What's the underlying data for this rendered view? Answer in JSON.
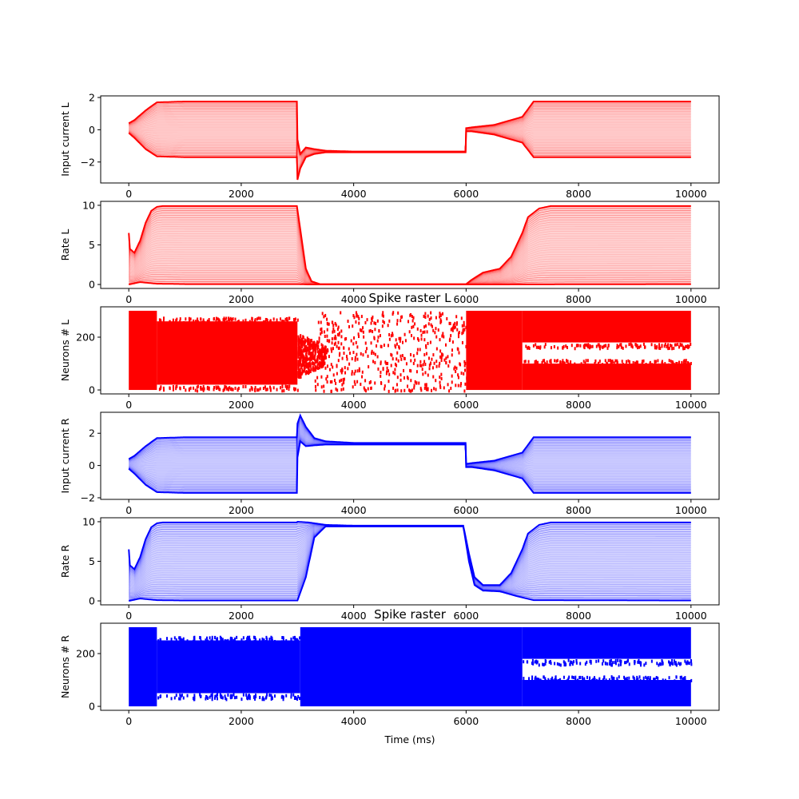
{
  "figure": {
    "xlabel": "Time (ms)"
  },
  "chart_data": [
    {
      "type": "line",
      "panel": "input_current_L",
      "title": "",
      "ylabel": "Input current L",
      "xlim": [
        -500,
        10500
      ],
      "ylim": [
        -3.3,
        2.1
      ],
      "xticks": [
        0,
        2000,
        4000,
        6000,
        8000,
        10000
      ],
      "yticks": [
        -2,
        0,
        2
      ],
      "color": "#ff0000",
      "series": [
        {
          "role": "upper",
          "x": [
            0,
            100,
            300,
            500,
            1000,
            2000,
            2990,
            3000,
            3050,
            3150,
            3300,
            3500,
            4000,
            5000,
            5990,
            6000,
            6100,
            6500,
            7000,
            7200,
            8000,
            10000
          ],
          "y": [
            0.4,
            0.6,
            1.2,
            1.7,
            1.75,
            1.75,
            1.75,
            -0.6,
            -1.5,
            -1.1,
            -1.2,
            -1.3,
            -1.35,
            -1.35,
            -1.35,
            0.1,
            0.15,
            0.3,
            0.8,
            1.75,
            1.75,
            1.75
          ]
        },
        {
          "role": "lower",
          "x": [
            0,
            100,
            300,
            500,
            1000,
            2000,
            2990,
            3000,
            3050,
            3150,
            3300,
            3500,
            4000,
            5000,
            5990,
            6000,
            6100,
            6500,
            7000,
            7200,
            8000,
            10000
          ],
          "y": [
            -0.2,
            -0.5,
            -1.2,
            -1.65,
            -1.7,
            -1.7,
            -1.7,
            -3.1,
            -2.4,
            -1.7,
            -1.5,
            -1.4,
            -1.4,
            -1.4,
            -1.4,
            -0.1,
            -0.1,
            -0.3,
            -0.8,
            -1.7,
            -1.7,
            -1.7
          ]
        }
      ]
    },
    {
      "type": "line",
      "panel": "rate_L",
      "title": "",
      "ylabel": "Rate L",
      "xlim": [
        -500,
        10500
      ],
      "ylim": [
        -0.5,
        10.5
      ],
      "xticks": [
        0,
        2000,
        4000,
        6000,
        8000,
        10000
      ],
      "yticks": [
        0,
        5,
        10
      ],
      "color": "#ff0000",
      "series": [
        {
          "role": "upper",
          "x": [
            0,
            20,
            100,
            200,
            300,
            400,
            500,
            600,
            800,
            2900,
            2990,
            3050,
            3150,
            3250,
            3400,
            6000,
            6100,
            6300,
            6600,
            6800,
            7000,
            7100,
            7300,
            7500,
            10000
          ],
          "y": [
            6.5,
            4.5,
            4.0,
            5.5,
            7.8,
            9.3,
            9.8,
            9.9,
            9.9,
            9.9,
            9.9,
            7.0,
            2.0,
            0.4,
            0.05,
            0.05,
            0.6,
            1.5,
            2.0,
            3.5,
            6.5,
            8.5,
            9.6,
            9.9,
            9.9
          ]
        },
        {
          "role": "lower",
          "x": [
            0,
            200,
            500,
            1000,
            3000,
            3200,
            6000,
            10000
          ],
          "y": [
            0.0,
            0.3,
            0.1,
            0.05,
            0.05,
            0.0,
            0.0,
            0.05
          ]
        }
      ]
    },
    {
      "type": "scatter",
      "panel": "spike_raster_L",
      "title": "Spike raster L",
      "ylabel": "Neurons # L",
      "xlim": [
        -500,
        10500
      ],
      "ylim": [
        -15,
        315
      ],
      "xticks": [
        0,
        2000,
        4000,
        6000,
        8000,
        10000
      ],
      "yticks": [
        0,
        200
      ],
      "color": "#ff0000",
      "regions": [
        {
          "x": [
            0,
            500
          ],
          "y": [
            0,
            300
          ],
          "density": "solid"
        },
        {
          "x": [
            500,
            3000
          ],
          "y": [
            20,
            260
          ],
          "density": "solid"
        },
        {
          "x": [
            3000,
            3500
          ],
          "y": [
            50,
            220
          ],
          "density": "tapering"
        },
        {
          "x": [
            3300,
            6000
          ],
          "y": [
            0,
            300
          ],
          "density": "sparse"
        },
        {
          "x": [
            6000,
            7000
          ],
          "y": [
            0,
            300
          ],
          "density": "solid"
        },
        {
          "x": [
            7000,
            10000
          ],
          "y": [
            0,
            100
          ],
          "density": "solid"
        },
        {
          "x": [
            7000,
            10000
          ],
          "y": [
            180,
            300
          ],
          "density": "solid"
        }
      ]
    },
    {
      "type": "line",
      "panel": "input_current_R",
      "title": "",
      "ylabel": "Input current R",
      "xlim": [
        -500,
        10500
      ],
      "ylim": [
        -2.1,
        3.3
      ],
      "xticks": [
        0,
        2000,
        4000,
        6000,
        8000,
        10000
      ],
      "yticks": [
        -2,
        0,
        2
      ],
      "color": "#0000ff",
      "series": [
        {
          "role": "upper",
          "x": [
            0,
            100,
            300,
            500,
            1000,
            2000,
            2990,
            3000,
            3050,
            3150,
            3300,
            3500,
            4000,
            5000,
            5990,
            6000,
            6100,
            6500,
            7000,
            7200,
            8000,
            10000
          ],
          "y": [
            0.4,
            0.6,
            1.2,
            1.7,
            1.75,
            1.75,
            1.75,
            2.6,
            3.1,
            2.4,
            1.7,
            1.5,
            1.4,
            1.4,
            1.4,
            0.1,
            0.15,
            0.3,
            0.8,
            1.75,
            1.75,
            1.75
          ]
        },
        {
          "role": "lower",
          "x": [
            0,
            100,
            300,
            500,
            1000,
            2000,
            2990,
            3000,
            3050,
            3150,
            3300,
            3500,
            4000,
            5000,
            5990,
            6000,
            6100,
            6500,
            7000,
            7200,
            8000,
            10000
          ],
          "y": [
            -0.2,
            -0.5,
            -1.2,
            -1.65,
            -1.7,
            -1.7,
            -1.7,
            0.5,
            1.5,
            1.2,
            1.25,
            1.3,
            1.3,
            1.3,
            1.3,
            -0.1,
            -0.1,
            -0.3,
            -0.8,
            -1.7,
            -1.7,
            -1.7
          ]
        }
      ]
    },
    {
      "type": "line",
      "panel": "rate_R",
      "title": "",
      "ylabel": "Rate R",
      "xlim": [
        -500,
        10500
      ],
      "ylim": [
        -0.5,
        10.5
      ],
      "xticks": [
        0,
        2000,
        4000,
        6000,
        8000,
        10000
      ],
      "yticks": [
        0,
        5,
        10
      ],
      "color": "#0000ff",
      "series": [
        {
          "role": "upper",
          "x": [
            0,
            20,
            100,
            200,
            300,
            400,
            500,
            600,
            800,
            2990,
            3000,
            3200,
            3500,
            4000,
            5950,
            6050,
            6150,
            6300,
            6600,
            6800,
            7000,
            7100,
            7300,
            7500,
            10000
          ],
          "y": [
            6.5,
            4.5,
            4.0,
            5.5,
            7.8,
            9.3,
            9.8,
            9.9,
            9.9,
            9.9,
            10.0,
            9.9,
            9.6,
            9.5,
            9.5,
            6.0,
            3.0,
            2.0,
            2.0,
            3.5,
            6.5,
            8.5,
            9.6,
            9.9,
            9.9
          ]
        },
        {
          "role": "lower",
          "x": [
            0,
            200,
            500,
            1000,
            2990,
            3000,
            3150,
            3300,
            3500,
            5950,
            6050,
            6150,
            6300,
            6600,
            6900,
            7200,
            10000
          ],
          "y": [
            0.0,
            0.3,
            0.1,
            0.05,
            0.05,
            0.05,
            3.0,
            8.0,
            9.4,
            9.4,
            5.0,
            2.0,
            1.3,
            1.2,
            0.6,
            0.1,
            0.05
          ]
        }
      ]
    },
    {
      "type": "scatter",
      "panel": "spike_raster_R",
      "title": "Spike raster",
      "ylabel": "Neurons # R",
      "xlim": [
        -500,
        10500
      ],
      "ylim": [
        -15,
        315
      ],
      "xticks": [
        0,
        2000,
        4000,
        6000,
        8000,
        10000
      ],
      "yticks": [
        0,
        200
      ],
      "color": "#0000ff",
      "regions": [
        {
          "x": [
            0,
            500
          ],
          "y": [
            0,
            300
          ],
          "density": "solid"
        },
        {
          "x": [
            500,
            3050
          ],
          "y": [
            50,
            250
          ],
          "density": "solid"
        },
        {
          "x": [
            3050,
            7000
          ],
          "y": [
            0,
            300
          ],
          "density": "solid"
        },
        {
          "x": [
            7000,
            10000
          ],
          "y": [
            0,
            100
          ],
          "density": "solid"
        },
        {
          "x": [
            7000,
            10000
          ],
          "y": [
            180,
            300
          ],
          "density": "solid"
        }
      ]
    }
  ]
}
